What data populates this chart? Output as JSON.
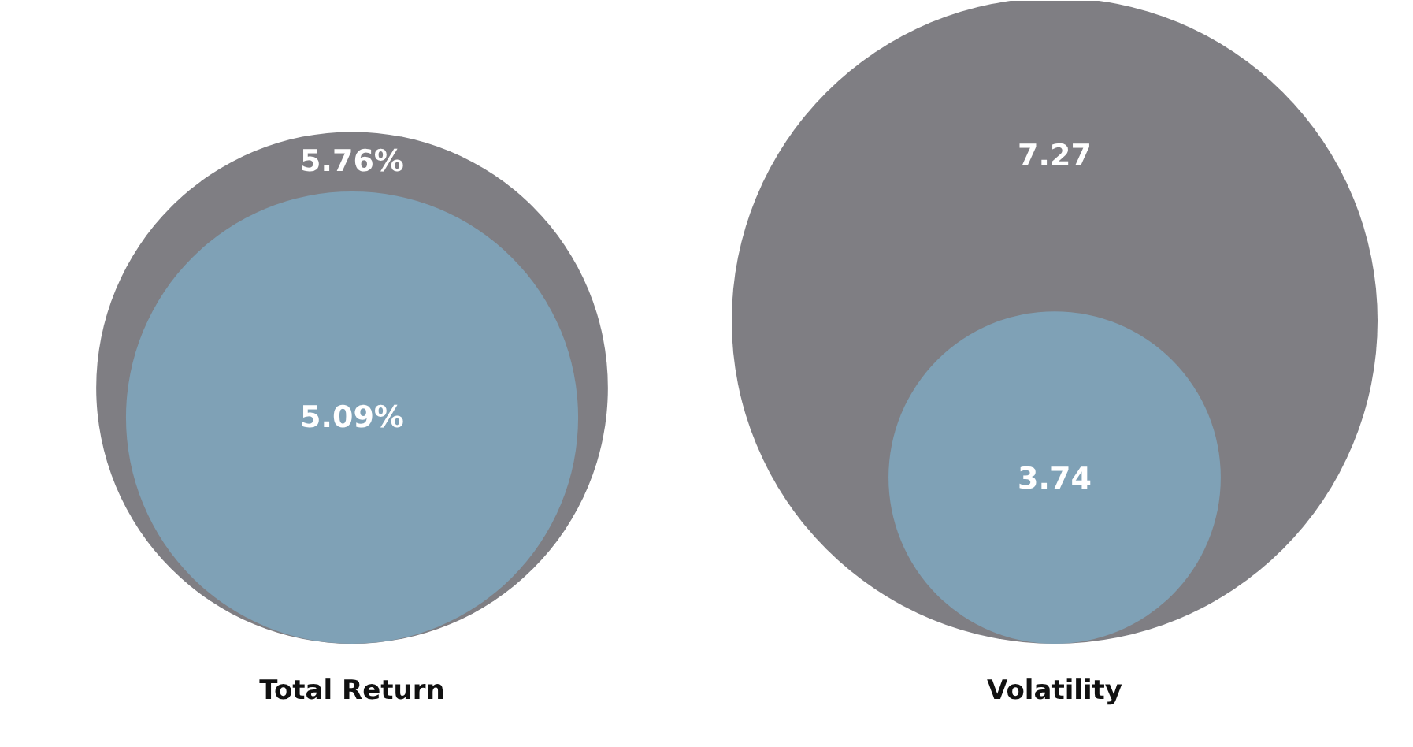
{
  "chart_data": [
    {
      "type": "other",
      "xlabel": "Total Return",
      "values": [
        5.76,
        5.09
      ],
      "value_labels": [
        "5.76%",
        "5.09%"
      ],
      "colors": [
        "#7f7e83",
        "#7fa1b6"
      ]
    },
    {
      "type": "other",
      "xlabel": "Volatility",
      "values": [
        7.27,
        3.74
      ],
      "value_labels": [
        "7.27",
        "3.74"
      ],
      "colors": [
        "#7f7e83",
        "#7fa1b6"
      ]
    }
  ]
}
